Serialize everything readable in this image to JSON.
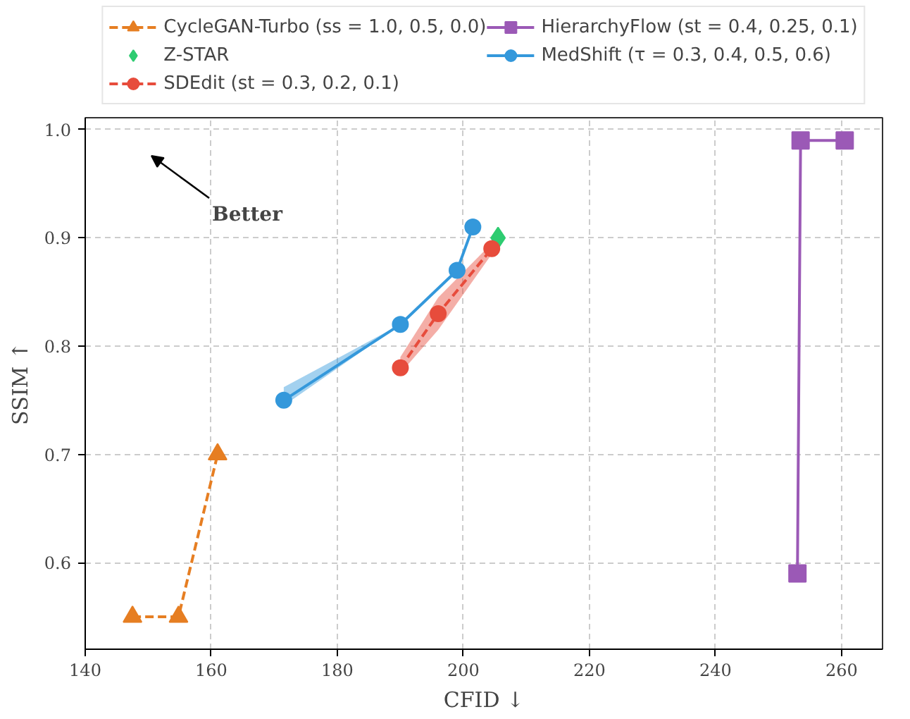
{
  "chart_data": {
    "type": "line",
    "xlabel": "CFID ↓",
    "ylabel": "SSIM ↑",
    "xlim": [
      140,
      266.5
    ],
    "ylim": [
      0.52,
      1.011
    ],
    "xticks": [
      140,
      160,
      180,
      200,
      220,
      240,
      260
    ],
    "yticks": [
      0.6,
      0.7,
      0.8,
      0.9,
      {
        "value": 1.0,
        "label": "1.0"
      }
    ],
    "grid": true,
    "legend": "top",
    "annotations": [
      "Better"
    ],
    "series": [
      {
        "name": "CycleGAN-Turbo (ss = 1.0, 0.5, 0.0)",
        "color": "#e67e22",
        "marker": "triangle",
        "line_style": "dashed",
        "x": [
          147.5,
          154.8,
          161
        ],
        "values": [
          0.55,
          0.55,
          0.7
        ]
      },
      {
        "name": "Z-STAR",
        "type": "scatter",
        "color": "#2ecc71",
        "marker": "diamond",
        "x": [
          205.5
        ],
        "values": [
          0.9
        ]
      },
      {
        "name": "SDEdit (st = 0.3, 0.2, 0.1)",
        "color": "#e74c3c",
        "marker": "circle",
        "line_style": "dashed",
        "x": [
          190,
          196,
          204.5
        ],
        "values": [
          0.78,
          0.83,
          0.89
        ],
        "lower": [
          0.775,
          0.815,
          0.885
        ],
        "upper": [
          0.79,
          0.845,
          0.895
        ]
      },
      {
        "name": "HierarchyFlow (st = 0.4, 0.25, 0.1)",
        "color": "#9b59b6",
        "marker": "square",
        "line_style": "solid",
        "x": [
          253,
          253.5,
          260.5
        ],
        "values": [
          0.59,
          0.99,
          0.99
        ]
      },
      {
        "name": "MedShift (τ = 0.3, 0.4, 0.5, 0.6)",
        "color": "#3498db",
        "marker": "circle",
        "line_style": "solid",
        "x": [
          171.5,
          190,
          199,
          201.5
        ],
        "values": [
          0.75,
          0.82,
          0.87,
          0.91
        ],
        "lower": [
          0.745,
          0.82,
          0.87,
          0.91
        ],
        "upper": [
          0.762,
          0.82,
          0.87,
          0.91
        ]
      }
    ]
  }
}
